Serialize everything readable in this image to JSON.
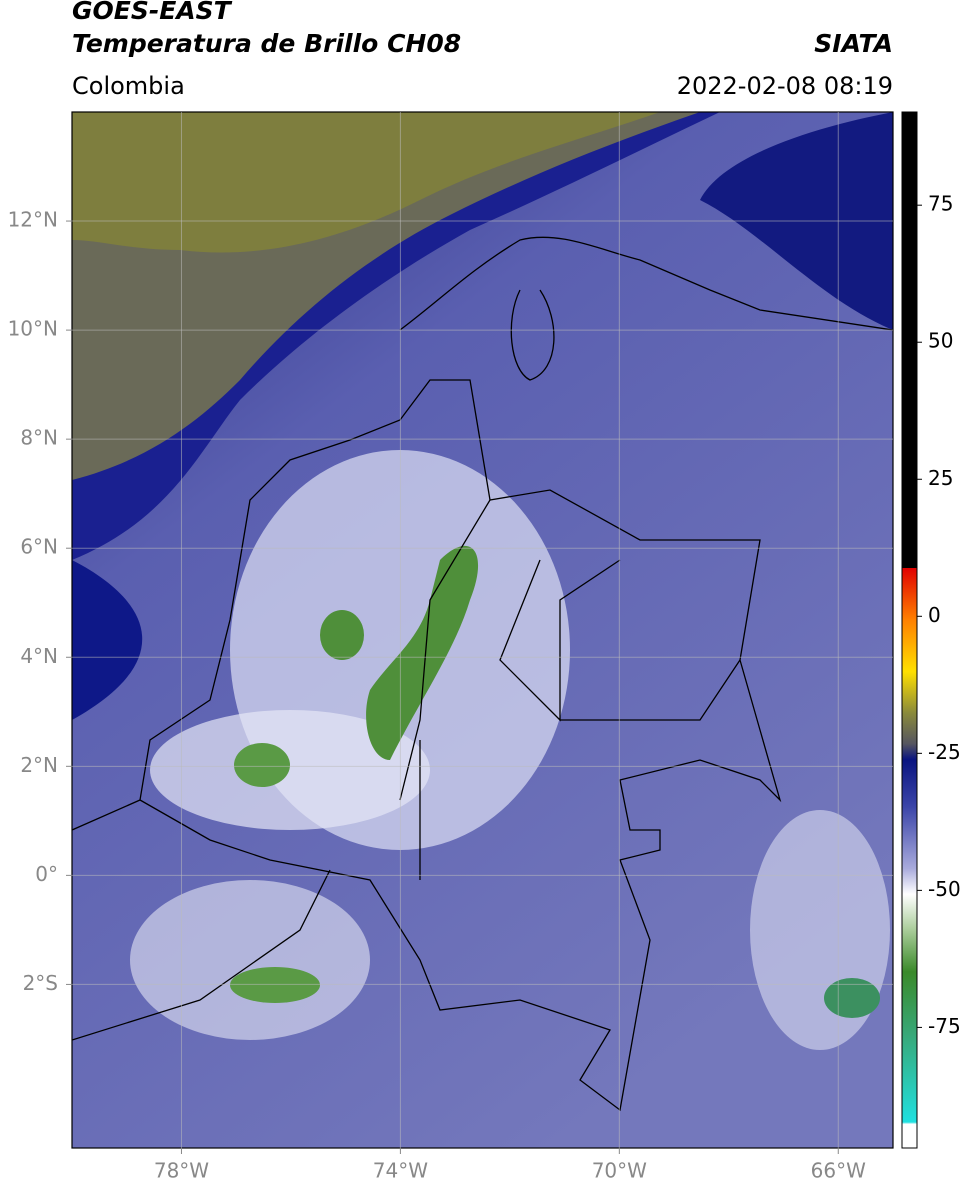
{
  "header": {
    "title": "GOES-EAST",
    "subtitle": "Temperatura de Brillo CH08",
    "source": "SIATA",
    "region": "Colombia",
    "timestamp": "2022-02-08 08:19"
  },
  "map": {
    "xlim": [
      -80,
      -65
    ],
    "ylim": [
      -5,
      14
    ],
    "xticks": [
      {
        "value": -78,
        "label": "78°W"
      },
      {
        "value": -74,
        "label": "74°W"
      },
      {
        "value": -70,
        "label": "70°W"
      },
      {
        "value": -66,
        "label": "66°W"
      }
    ],
    "yticks": [
      {
        "value": 12,
        "label": "12°N"
      },
      {
        "value": 10,
        "label": "10°N"
      },
      {
        "value": 8,
        "label": "8°N"
      },
      {
        "value": 6,
        "label": "6°N"
      },
      {
        "value": 4,
        "label": "4°N"
      },
      {
        "value": 2,
        "label": "2°N"
      },
      {
        "value": 0,
        "label": "0°"
      },
      {
        "value": -2,
        "label": "2°S"
      }
    ],
    "grid": true
  },
  "colorbar": {
    "lim": [
      -97,
      92
    ],
    "ticks": [
      75,
      50,
      25,
      0,
      -25,
      -50,
      -75
    ]
  }
}
